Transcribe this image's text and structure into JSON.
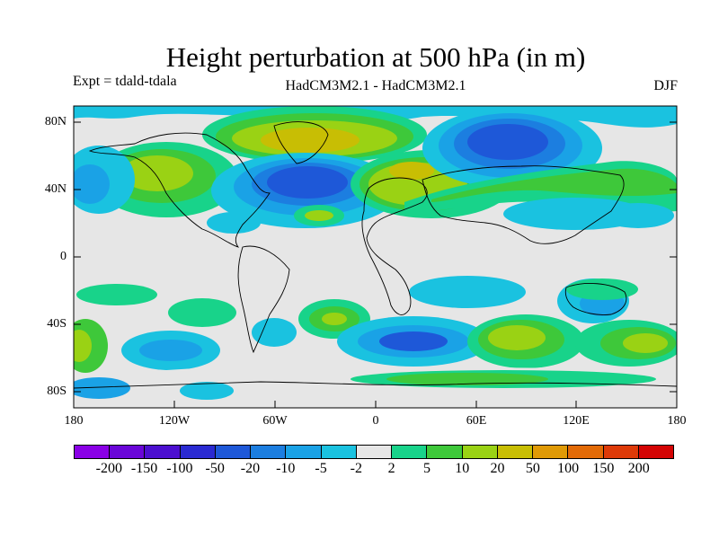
{
  "title": "Height perturbation at 500 hPa (in m)",
  "left_subtitle": "Expt = tdald-tdala",
  "center_subtitle": "HadCM3M2.1 - HadCM3M2.1",
  "right_subtitle": "DJF",
  "y_ticks": [
    "80N",
    "40N",
    "0",
    "40S",
    "80S"
  ],
  "x_ticks": [
    "180",
    "120W",
    "60W",
    "0",
    "60E",
    "120E",
    "180"
  ],
  "colorbar": {
    "labels": [
      "-200",
      "-150",
      "-100",
      "-50",
      "-20",
      "-10",
      "-5",
      "-2",
      "2",
      "5",
      "10",
      "20",
      "50",
      "100",
      "150",
      "200"
    ],
    "colors": [
      "#8a00e6",
      "#6a06d8",
      "#4c0fd0",
      "#2a2ad2",
      "#1e58d8",
      "#1c7ee0",
      "#1aa2e6",
      "#1ac2e0",
      "#e6e6e6",
      "#18d38a",
      "#3ec83a",
      "#9ad214",
      "#c8be04",
      "#e09a06",
      "#e26a06",
      "#de3a08",
      "#d40404"
    ]
  }
}
